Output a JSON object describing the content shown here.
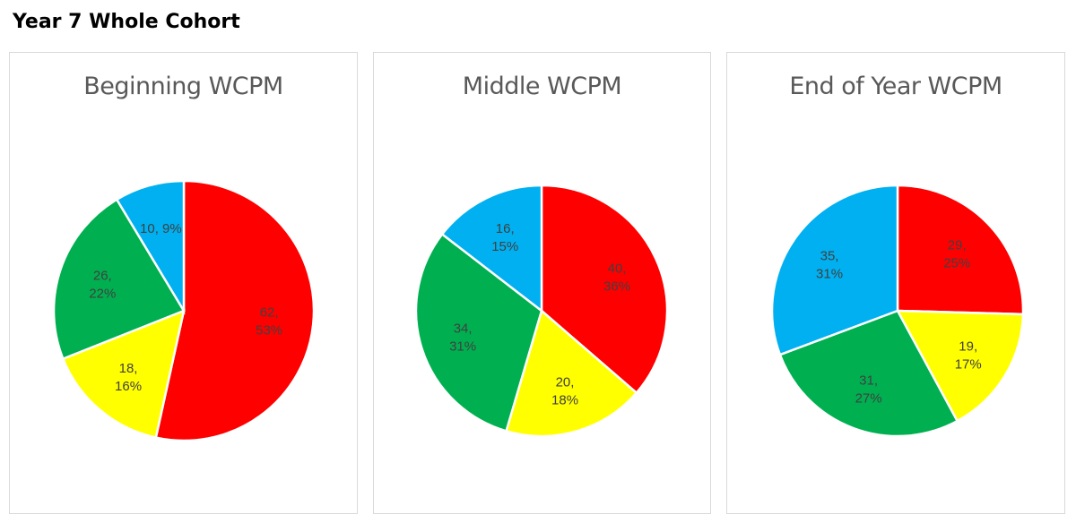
{
  "page_title": "Year 7 Whole Cohort",
  "chart_data": [
    {
      "type": "pie",
      "title": "Beginning WCPM",
      "slices": [
        {
          "value": 62,
          "percent": "53%",
          "color": "#ff0000"
        },
        {
          "value": 18,
          "percent": "16%",
          "color": "#ffff00"
        },
        {
          "value": 26,
          "percent": "22%",
          "color": "#00b050"
        },
        {
          "value": 10,
          "percent": "9%",
          "color": "#00b0f0"
        }
      ]
    },
    {
      "type": "pie",
      "title": "Middle WCPM",
      "slices": [
        {
          "value": 40,
          "percent": "36%",
          "color": "#ff0000"
        },
        {
          "value": 20,
          "percent": "18%",
          "color": "#ffff00"
        },
        {
          "value": 34,
          "percent": "31%",
          "color": "#00b050"
        },
        {
          "value": 16,
          "percent": "15%",
          "color": "#00b0f0"
        }
      ]
    },
    {
      "type": "pie",
      "title": "End of Year WCPM",
      "slices": [
        {
          "value": 29,
          "percent": "25%",
          "color": "#ff0000"
        },
        {
          "value": 19,
          "percent": "17%",
          "color": "#ffff00"
        },
        {
          "value": 31,
          "percent": "27%",
          "color": "#00b050"
        },
        {
          "value": 35,
          "percent": "31%",
          "color": "#00b0f0"
        }
      ]
    }
  ]
}
